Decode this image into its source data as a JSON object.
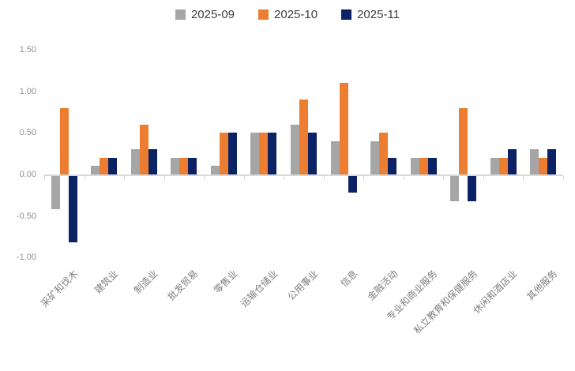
{
  "chart_data": {
    "type": "bar",
    "categories": [
      "采矿和伐木",
      "建筑业",
      "制造业",
      "批发贸易",
      "零售业",
      "运输仓储业",
      "公用事业",
      "信息",
      "金融活动",
      "专业和商业服务",
      "私立教育和保健服务",
      "休闲和酒店业",
      "其他服务"
    ],
    "series": [
      {
        "name": "2025-09",
        "color": "#A6A6A6",
        "values": [
          -0.4,
          0.1,
          0.3,
          0.2,
          0.1,
          0.5,
          0.6,
          0.4,
          0.4,
          0.2,
          -0.3,
          0.2,
          0.3
        ]
      },
      {
        "name": "2025-10",
        "color": "#ED7D31",
        "values": [
          0.8,
          0.2,
          0.6,
          0.2,
          0.5,
          0.5,
          0.9,
          1.1,
          0.5,
          0.2,
          0.8,
          0.2,
          0.2
        ]
      },
      {
        "name": "2025-11",
        "color": "#0B2265",
        "values": [
          -0.8,
          0.2,
          0.3,
          0.2,
          0.5,
          0.5,
          0.5,
          -0.2,
          0.2,
          0.2,
          -0.3,
          0.3,
          0.3
        ]
      }
    ],
    "title": "",
    "xlabel": "",
    "ylabel": "",
    "ylim": [
      -1.0,
      1.5
    ],
    "yticks": [
      "1.50",
      "1.00",
      "0.50",
      "0.00",
      "-0.50",
      "-1.00"
    ],
    "grid": false,
    "legend_position": "top-center"
  }
}
